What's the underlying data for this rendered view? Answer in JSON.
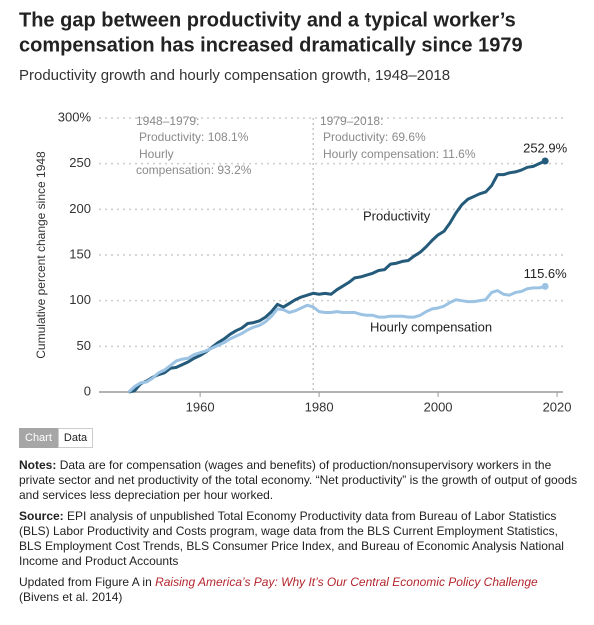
{
  "chart_data": {
    "type": "line",
    "title": "The gap between productivity and a typical worker’s compensation has increased dramatically since 1979",
    "title_lines": [
      "The gap between productivity and a typical worker’s",
      "compensation has increased dramatically since 1979"
    ],
    "subtitle": "Productivity growth and hourly compensation growth, 1948–2018",
    "y_label": "Cumulative percent change since 1948",
    "x": [
      1948,
      1949,
      1950,
      1951,
      1952,
      1953,
      1954,
      1955,
      1956,
      1957,
      1958,
      1959,
      1960,
      1961,
      1962,
      1963,
      1964,
      1965,
      1966,
      1967,
      1968,
      1969,
      1970,
      1971,
      1972,
      1973,
      1974,
      1975,
      1976,
      1977,
      1978,
      1979,
      1980,
      1981,
      1982,
      1983,
      1984,
      1985,
      1986,
      1987,
      1988,
      1989,
      1990,
      1991,
      1992,
      1993,
      1994,
      1995,
      1996,
      1997,
      1998,
      1999,
      2000,
      2001,
      2002,
      2003,
      2004,
      2005,
      2006,
      2007,
      2008,
      2009,
      2010,
      2011,
      2012,
      2013,
      2014,
      2015,
      2016,
      2017,
      2018
    ],
    "series": [
      {
        "name": "Productivity",
        "color": "#245a7a",
        "values": [
          0,
          1.5,
          9,
          12,
          16,
          19,
          21,
          26,
          27,
          30,
          33,
          37,
          40,
          44,
          49,
          54,
          58,
          63,
          67,
          70,
          75,
          76,
          78,
          82,
          88,
          96,
          93,
          97,
          101,
          104,
          106,
          108.1,
          107,
          108,
          107,
          112,
          116,
          120,
          125,
          126,
          128,
          130,
          133,
          134,
          140,
          141,
          143,
          144,
          149,
          153,
          159,
          166,
          172,
          176,
          185,
          196,
          205,
          211,
          214,
          217,
          219,
          226,
          238,
          238,
          240,
          241,
          243,
          246,
          247,
          250,
          252.9
        ],
        "value_labels": [
          null,
          null,
          null,
          null,
          null,
          null,
          null,
          null,
          null,
          null,
          null,
          null,
          null,
          null,
          null,
          null,
          null,
          null,
          null,
          null,
          null,
          null,
          null,
          null,
          null,
          null,
          null,
          null,
          null,
          null,
          null,
          null,
          null,
          null,
          null,
          null,
          null,
          null,
          null,
          null,
          null,
          null,
          null,
          null,
          null,
          null,
          null,
          null,
          null,
          null,
          null,
          null,
          null,
          null,
          null,
          null,
          null,
          null,
          null,
          null,
          null,
          null,
          null,
          null,
          null,
          null,
          null,
          null,
          null,
          null,
          "252.9%"
        ]
      },
      {
        "name": "Hourly compensation",
        "color": "#9cc3e4",
        "values": [
          0,
          6,
          10,
          11,
          15,
          21,
          24,
          29,
          34,
          36,
          37,
          41,
          43,
          45,
          48,
          51,
          54,
          58,
          61,
          64,
          68,
          71,
          73,
          77,
          83,
          91,
          90,
          87,
          89,
          92,
          95,
          93.2,
          88,
          87,
          87,
          88,
          87,
          87,
          87,
          85,
          84,
          84,
          82,
          82,
          83,
          83,
          83,
          82,
          82,
          84,
          88,
          91,
          92,
          94,
          98,
          101,
          100,
          99,
          99,
          100,
          101,
          109,
          111,
          107,
          106,
          109,
          110,
          113,
          114,
          114,
          115.6
        ],
        "value_labels": [
          null,
          null,
          null,
          null,
          null,
          null,
          null,
          null,
          null,
          null,
          null,
          null,
          null,
          null,
          null,
          null,
          null,
          null,
          null,
          null,
          null,
          null,
          null,
          null,
          null,
          null,
          null,
          null,
          null,
          null,
          null,
          null,
          null,
          null,
          null,
          null,
          null,
          null,
          null,
          null,
          null,
          null,
          null,
          null,
          null,
          null,
          null,
          null,
          null,
          null,
          null,
          null,
          null,
          null,
          null,
          null,
          null,
          null,
          null,
          null,
          null,
          null,
          null,
          null,
          null,
          null,
          null,
          null,
          null,
          null,
          "115.6%"
        ]
      }
    ],
    "xlim": [
      1943,
      2021
    ],
    "xticks": [
      1960,
      1980,
      2000,
      2020
    ],
    "ylim": [
      0,
      300
    ],
    "yticks": [
      0,
      50,
      100,
      150,
      200,
      250,
      {
        "value": 300,
        "label": "300%"
      }
    ],
    "grid": true,
    "divider": 1979,
    "annotations": [
      {
        "lines": [
          "1948–1979:",
          "Productivity: 108.1%",
          "Hourly",
          "compensation: 93.2%"
        ]
      },
      {
        "lines": [
          "1979–2018:",
          "Productivity: 69.6%",
          "Hourly compensation: 11.6%"
        ]
      }
    ]
  },
  "toggle": [
    "Chart",
    "Data"
  ],
  "notes": {
    "label": "Notes:",
    "text": "Data are for compensation (wages and benefits) of production/nonsupervisory workers in the private sector and net productivity of the total economy. “Net productivity” is the growth of output of goods and services less depreciation per hour worked."
  },
  "source": {
    "label": "Source:",
    "text": "EPI analysis of unpublished Total Economy Productivity data from Bureau of Labor Statistics (BLS) Labor Productivity and Costs program, wage data from the BLS Current Employment Statistics, BLS Employment Cost Trends, BLS Consumer Price Index, and Bureau of Economic Analysis National Income and Product Accounts"
  },
  "updated": {
    "before": "Updated from Figure A in",
    "link": "Raising America’s Pay: Why It’s Our Central Economic Policy Challenge",
    "after": "(Bivens et al. 2014)"
  }
}
